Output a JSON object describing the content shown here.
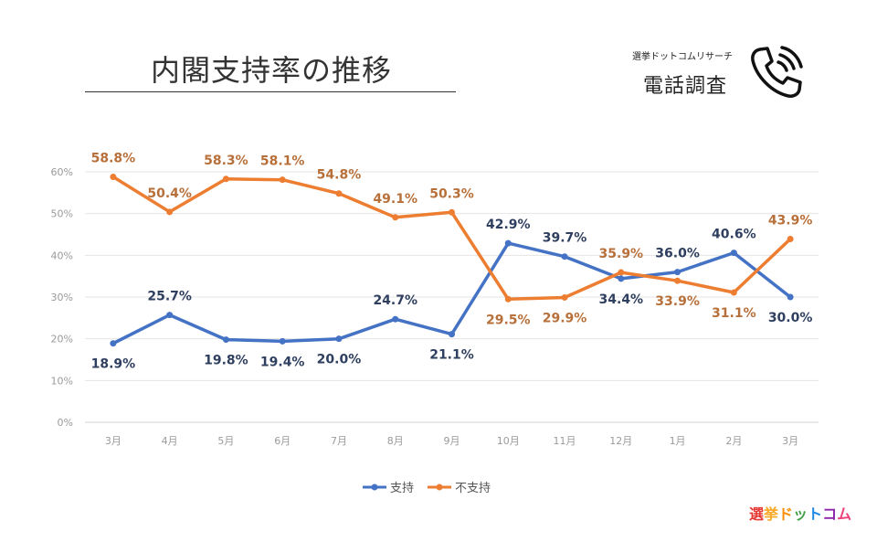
{
  "header": {
    "title": "内閣支持率の推移",
    "source_small": "選挙ドットコムリサーチ",
    "source_main": "電話調査",
    "icon": "phone-ringing-icon"
  },
  "logo": {
    "text": "選挙ドットコム",
    "colors": [
      "#e53935",
      "#f9a825",
      "#fb8c00",
      "#43a047",
      "#1e88e5",
      "#8e24aa",
      "#ec407a"
    ]
  },
  "chart_data": {
    "type": "line",
    "title": "内閣支持率の推移",
    "categories": [
      "3月",
      "4月",
      "5月",
      "6月",
      "7月",
      "8月",
      "9月",
      "10月",
      "11月",
      "12月",
      "1月",
      "2月",
      "3月"
    ],
    "y_ticks": [
      "0%",
      "10%",
      "20%",
      "30%",
      "40%",
      "50%",
      "60%"
    ],
    "ylim": [
      0,
      60
    ],
    "grid": true,
    "legend_position": "bottom",
    "series": [
      {
        "name": "支持",
        "color": "#4472c4",
        "label_color": "#2f3f5f",
        "values": [
          18.9,
          25.7,
          19.8,
          19.4,
          20.0,
          24.7,
          21.1,
          42.9,
          39.7,
          34.4,
          36.0,
          40.6,
          30.0
        ],
        "labels": [
          "18.9%",
          "25.7%",
          "19.8%",
          "19.4%",
          "20.0%",
          "24.7%",
          "21.1%",
          "42.9%",
          "39.7%",
          "34.4%",
          "36.0%",
          "40.6%",
          "30.0%"
        ]
      },
      {
        "name": "不支持",
        "color": "#ed7d31",
        "label_color": "#b8703a",
        "values": [
          58.8,
          50.4,
          58.3,
          58.1,
          54.8,
          49.1,
          50.3,
          29.5,
          29.9,
          35.9,
          33.9,
          31.1,
          43.9
        ],
        "labels": [
          "58.8%",
          "50.4%",
          "58.3%",
          "58.1%",
          "54.8%",
          "49.1%",
          "50.3%",
          "29.5%",
          "29.9%",
          "35.9%",
          "33.9%",
          "31.1%",
          "43.9%"
        ]
      }
    ]
  }
}
